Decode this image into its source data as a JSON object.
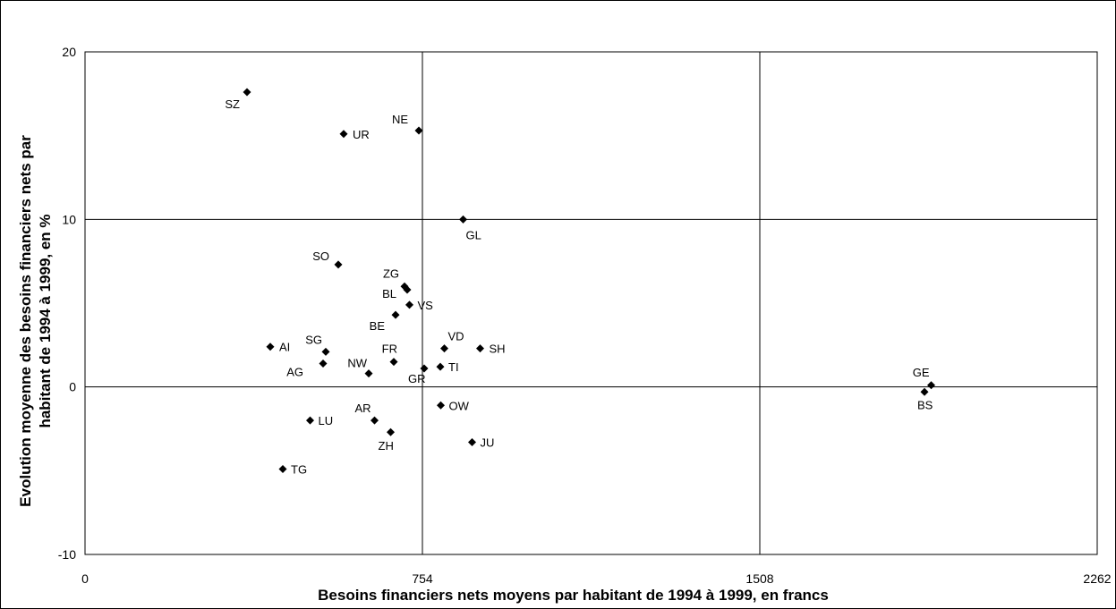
{
  "chart_data": {
    "type": "scatter",
    "title": "",
    "xlabel": "Besoins financiers nets moyens par habitant de 1994 à 1999, en francs",
    "ylabel_line1": "Evolution moyenne des besoins financiers nets par",
    "ylabel_line2": "habitant de 1994 à 1999, en %",
    "xlim": [
      0,
      2262
    ],
    "ylim": [
      -10,
      20
    ],
    "x_ticks": [
      0,
      754,
      1508,
      2262
    ],
    "y_ticks": [
      -10,
      0,
      10,
      20
    ],
    "grid": true,
    "legend": "none",
    "marker_color": "#000000",
    "points": [
      {
        "label": "SZ",
        "x": 362,
        "y": 17.6
      },
      {
        "label": "NE",
        "x": 746,
        "y": 15.3
      },
      {
        "label": "UR",
        "x": 578,
        "y": 15.1
      },
      {
        "label": "GL",
        "x": 845,
        "y": 10.0
      },
      {
        "label": "SO",
        "x": 566,
        "y": 7.3
      },
      {
        "label": "ZG",
        "x": 714,
        "y": 6.0
      },
      {
        "label": "BL",
        "x": 720,
        "y": 5.8
      },
      {
        "label": "VS",
        "x": 725,
        "y": 4.9
      },
      {
        "label": "BE",
        "x": 694,
        "y": 4.3
      },
      {
        "label": "AI",
        "x": 414,
        "y": 2.4
      },
      {
        "label": "SG",
        "x": 538,
        "y": 2.1
      },
      {
        "label": "VD",
        "x": 803,
        "y": 2.3
      },
      {
        "label": "SH",
        "x": 883,
        "y": 2.3
      },
      {
        "label": "FR",
        "x": 690,
        "y": 1.5
      },
      {
        "label": "AG",
        "x": 532,
        "y": 1.4
      },
      {
        "label": "TI",
        "x": 794,
        "y": 1.2
      },
      {
        "label": "GR",
        "x": 758,
        "y": 1.1
      },
      {
        "label": "NW",
        "x": 634,
        "y": 0.8
      },
      {
        "label": "GE",
        "x": 1891,
        "y": 0.1
      },
      {
        "label": "BS",
        "x": 1876,
        "y": -0.3
      },
      {
        "label": "OW",
        "x": 795,
        "y": -1.1
      },
      {
        "label": "LU",
        "x": 503,
        "y": -2.0
      },
      {
        "label": "AR",
        "x": 647,
        "y": -2.0
      },
      {
        "label": "ZH",
        "x": 683,
        "y": -2.7
      },
      {
        "label": "JU",
        "x": 865,
        "y": -3.3
      },
      {
        "label": "TG",
        "x": 442,
        "y": -4.9
      }
    ]
  }
}
